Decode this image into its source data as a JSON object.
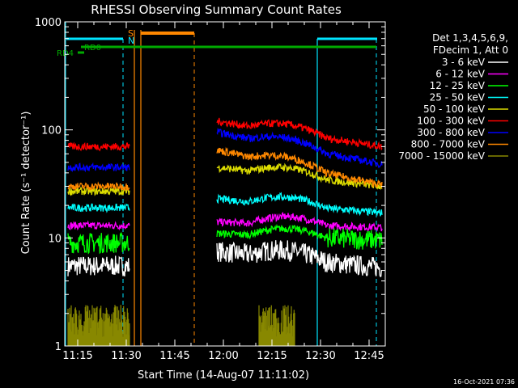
{
  "chart_data": {
    "type": "line",
    "title": "RHESSI Observing Summary Count Rates",
    "xlabel": "Start Time (14-Aug-07 11:11:02)",
    "ylabel": "Count Rate (s⁻¹ detector⁻¹)",
    "yscale": "log",
    "ylim": [
      1,
      1000
    ],
    "xlim": [
      "11:11",
      "12:50"
    ],
    "x_ticks": [
      "11:15",
      "11:30",
      "11:45",
      "12:00",
      "12:15",
      "12:30",
      "12:45"
    ],
    "y_ticks": [
      "1",
      "10",
      "100",
      "1000"
    ],
    "grid": false,
    "legend_position": "right",
    "legend_header": [
      "Det 1,3,4,5,6,9,",
      "FDecim 1, Att 0"
    ],
    "footer_date": "16-Oct-2021 07:36",
    "flags": [
      {
        "label": "RD0",
        "color": "#00aa00"
      },
      {
        "label": "RD4",
        "color": "#00aa00"
      },
      {
        "label": "S",
        "color": "#ff8800"
      },
      {
        "label": "N",
        "color": "#00e5ff"
      }
    ],
    "series": [
      {
        "name": "3 - 6 keV",
        "color": "#ffffff",
        "segments": [
          {
            "x": [
              "11:12",
              "11:31"
            ],
            "values": [
              5.5,
              5.5
            ]
          },
          {
            "x": [
              "11:58",
              "12:49"
            ],
            "values": [
              7.5,
              5.3
            ]
          }
        ]
      },
      {
        "name": "6 - 12 keV",
        "color": "#ff00ff",
        "segments": [
          {
            "x": [
              "11:12",
              "11:31"
            ],
            "values": [
              13,
              13
            ]
          },
          {
            "x": [
              "11:58",
              "12:49"
            ],
            "values": [
              14,
              12.5
            ]
          }
        ]
      },
      {
        "name": "12 - 25 keV",
        "color": "#00ff00",
        "segments": [
          {
            "x": [
              "11:12",
              "11:31"
            ],
            "values": [
              9,
              9
            ]
          },
          {
            "x": [
              "11:58",
              "12:49"
            ],
            "values": [
              11,
              9.5
            ]
          }
        ]
      },
      {
        "name": "25 - 50 keV",
        "color": "#00ffff",
        "segments": [
          {
            "x": [
              "11:12",
              "11:31"
            ],
            "values": [
              19,
              19
            ]
          },
          {
            "x": [
              "11:58",
              "12:49"
            ],
            "values": [
              23,
              17
            ]
          }
        ]
      },
      {
        "name": "50 - 100 keV",
        "color": "#dddd00",
        "segments": [
          {
            "x": [
              "11:12",
              "11:31"
            ],
            "values": [
              27,
              27
            ]
          },
          {
            "x": [
              "11:58",
              "12:49"
            ],
            "values": [
              45,
              30
            ]
          }
        ]
      },
      {
        "name": "100 - 300 keV",
        "color": "#ff0000",
        "segments": [
          {
            "x": [
              "11:12",
              "11:31"
            ],
            "values": [
              70,
              70
            ]
          },
          {
            "x": [
              "11:58",
              "12:49"
            ],
            "values": [
              120,
              70
            ]
          }
        ]
      },
      {
        "name": "300 - 800 keV",
        "color": "#0000ff",
        "segments": [
          {
            "x": [
              "11:12",
              "11:31"
            ],
            "values": [
              45,
              45
            ]
          },
          {
            "x": [
              "11:58",
              "12:49"
            ],
            "values": [
              95,
              48
            ]
          }
        ]
      },
      {
        "name": "800 - 7000 keV",
        "color": "#ff8800",
        "segments": [
          {
            "x": [
              "11:12",
              "11:31"
            ],
            "values": [
              30,
              30
            ]
          },
          {
            "x": [
              "11:58",
              "12:49"
            ],
            "values": [
              65,
              31
            ]
          }
        ]
      },
      {
        "name": "7000 - 15000 keV",
        "color": "#888800",
        "segments": [
          {
            "x": [
              "11:12",
              "11:31"
            ],
            "values": [
              1.5,
              1.5
            ]
          },
          {
            "x": [
              "12:11",
              "12:22"
            ],
            "values": [
              1.5,
              1.5
            ]
          }
        ]
      }
    ]
  }
}
